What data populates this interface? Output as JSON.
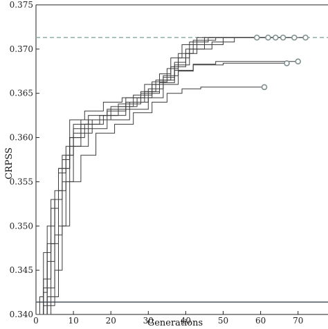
{
  "chart_data": {
    "type": "line",
    "title": "",
    "xlabel": "Generations",
    "ylabel": "CRPSS",
    "xlim": [
      0,
      78
    ],
    "ylim": [
      0.34,
      0.375
    ],
    "xticks": [
      0,
      10,
      20,
      30,
      40,
      50,
      60,
      70
    ],
    "xtick_labels": [
      "0",
      "10",
      "20",
      "30",
      "40",
      "50",
      "60",
      "70"
    ],
    "yticks": [
      0.34,
      0.345,
      0.35,
      0.355,
      0.36,
      0.365,
      0.37,
      0.375
    ],
    "ytick_labels": [
      "0.340",
      "0.345",
      "0.350",
      "0.355",
      "0.360",
      "0.365",
      "0.370",
      "0.375"
    ],
    "grid": false,
    "colors": {
      "series": "#3a3a3a",
      "end_marker": "#7f8f8f",
      "reference_dashed": "#8fb0a8",
      "baseline": "#4a5560",
      "axes": "#222222"
    },
    "reference_lines": [
      {
        "style": "dashed",
        "y": 0.3713
      },
      {
        "style": "solid",
        "y": 0.3414
      }
    ],
    "series": [
      {
        "end_marker": true,
        "points": [
          [
            0,
            0.34
          ],
          [
            2,
            0.343
          ],
          [
            3,
            0.35
          ],
          [
            4,
            0.353
          ],
          [
            6,
            0.3565
          ],
          [
            9,
            0.36
          ],
          [
            12,
            0.362
          ],
          [
            17,
            0.3625
          ],
          [
            22,
            0.3635
          ],
          [
            27,
            0.3645
          ],
          [
            31,
            0.366
          ],
          [
            34,
            0.3668
          ],
          [
            37,
            0.3685
          ],
          [
            40,
            0.3695
          ],
          [
            42,
            0.371
          ],
          [
            48,
            0.3713
          ],
          [
            59,
            0.3713
          ]
        ]
      },
      {
        "end_marker": true,
        "points": [
          [
            0,
            0.34
          ],
          [
            1,
            0.342
          ],
          [
            2,
            0.347
          ],
          [
            4,
            0.352
          ],
          [
            6,
            0.356
          ],
          [
            8,
            0.359
          ],
          [
            10,
            0.361
          ],
          [
            14,
            0.362
          ],
          [
            19,
            0.363
          ],
          [
            24,
            0.3645
          ],
          [
            29,
            0.366
          ],
          [
            33,
            0.3672
          ],
          [
            36,
            0.369
          ],
          [
            39,
            0.3705
          ],
          [
            43,
            0.3713
          ],
          [
            50,
            0.3713
          ],
          [
            62,
            0.3713
          ]
        ]
      },
      {
        "end_marker": true,
        "points": [
          [
            0,
            0.34
          ],
          [
            2,
            0.341
          ],
          [
            3,
            0.346
          ],
          [
            5,
            0.353
          ],
          [
            7,
            0.3575
          ],
          [
            9,
            0.362
          ],
          [
            13,
            0.363
          ],
          [
            18,
            0.364
          ],
          [
            23,
            0.3645
          ],
          [
            28,
            0.3652
          ],
          [
            32,
            0.3665
          ],
          [
            36,
            0.368
          ],
          [
            40,
            0.37
          ],
          [
            45,
            0.3713
          ],
          [
            54,
            0.3713
          ],
          [
            64,
            0.3713
          ]
        ]
      },
      {
        "end_marker": true,
        "points": [
          [
            0,
            0.34
          ],
          [
            3,
            0.342
          ],
          [
            4,
            0.348
          ],
          [
            6,
            0.354
          ],
          [
            8,
            0.358
          ],
          [
            10,
            0.3615
          ],
          [
            14,
            0.3625
          ],
          [
            19,
            0.3632
          ],
          [
            25,
            0.364
          ],
          [
            30,
            0.3655
          ],
          [
            34,
            0.367
          ],
          [
            38,
            0.369
          ],
          [
            41,
            0.3708
          ],
          [
            46,
            0.3713
          ],
          [
            55,
            0.3713
          ],
          [
            66,
            0.3713
          ]
        ]
      },
      {
        "end_marker": true,
        "points": [
          [
            0,
            0.34
          ],
          [
            2,
            0.344
          ],
          [
            4,
            0.35
          ],
          [
            5,
            0.354
          ],
          [
            7,
            0.358
          ],
          [
            10,
            0.3605
          ],
          [
            15,
            0.362
          ],
          [
            20,
            0.3635
          ],
          [
            26,
            0.3648
          ],
          [
            31,
            0.3663
          ],
          [
            35,
            0.3678
          ],
          [
            38,
            0.3695
          ],
          [
            43,
            0.3705
          ],
          [
            50,
            0.3713
          ],
          [
            60,
            0.3713
          ],
          [
            69,
            0.3713
          ]
        ]
      },
      {
        "end_marker": true,
        "points": [
          [
            0,
            0.34
          ],
          [
            3,
            0.343
          ],
          [
            5,
            0.349
          ],
          [
            7,
            0.355
          ],
          [
            9,
            0.359
          ],
          [
            12,
            0.3615
          ],
          [
            17,
            0.3625
          ],
          [
            22,
            0.3638
          ],
          [
            28,
            0.365
          ],
          [
            33,
            0.3662
          ],
          [
            37,
            0.3682
          ],
          [
            41,
            0.37
          ],
          [
            47,
            0.3708
          ],
          [
            53,
            0.3713
          ],
          [
            62,
            0.3713
          ],
          [
            72,
            0.3713
          ]
        ]
      },
      {
        "end_marker": true,
        "points": [
          [
            0,
            0.34
          ],
          [
            2,
            0.3425
          ],
          [
            3,
            0.348
          ],
          [
            5,
            0.353
          ],
          [
            6,
            0.3565
          ],
          [
            9,
            0.36
          ],
          [
            13,
            0.3615
          ],
          [
            18,
            0.3625
          ],
          [
            24,
            0.364
          ],
          [
            29,
            0.3652
          ],
          [
            33,
            0.3665
          ],
          [
            37,
            0.3676
          ],
          [
            42,
            0.3682
          ],
          [
            50,
            0.3684
          ],
          [
            67,
            0.3684
          ]
        ]
      },
      {
        "end_marker": true,
        "points": [
          [
            0,
            0.34
          ],
          [
            4,
            0.342
          ],
          [
            6,
            0.35
          ],
          [
            8,
            0.355
          ],
          [
            10,
            0.359
          ],
          [
            14,
            0.361
          ],
          [
            19,
            0.362
          ],
          [
            25,
            0.3632
          ],
          [
            30,
            0.3645
          ],
          [
            34,
            0.366
          ],
          [
            38,
            0.3675
          ],
          [
            42,
            0.3683
          ],
          [
            48,
            0.3686
          ],
          [
            70,
            0.3686
          ]
        ]
      },
      {
        "end_marker": true,
        "points": [
          [
            0,
            0.34
          ],
          [
            3,
            0.341
          ],
          [
            5,
            0.345
          ],
          [
            7,
            0.35
          ],
          [
            9,
            0.355
          ],
          [
            12,
            0.358
          ],
          [
            16,
            0.3605
          ],
          [
            21,
            0.3615
          ],
          [
            26,
            0.3628
          ],
          [
            31,
            0.364
          ],
          [
            35,
            0.365
          ],
          [
            39,
            0.3655
          ],
          [
            44,
            0.3657
          ],
          [
            61,
            0.3657
          ]
        ]
      }
    ]
  }
}
